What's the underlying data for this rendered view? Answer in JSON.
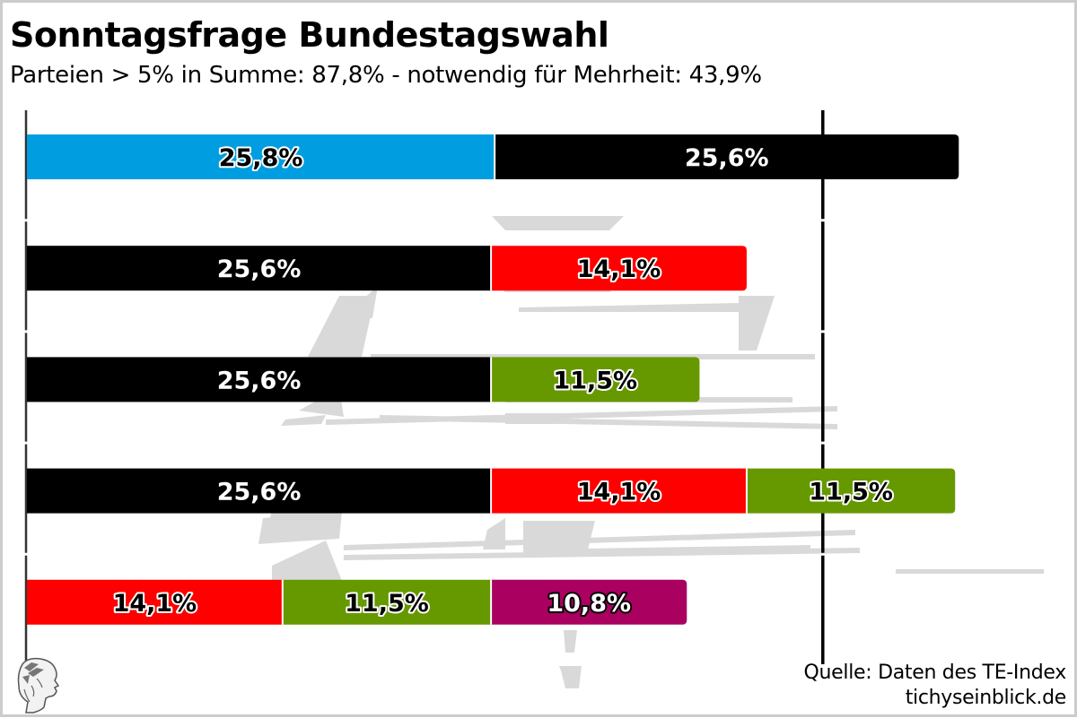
{
  "header": {
    "title": "Sonntagsfrage Bundestagswahl",
    "subtitle": "Parteien > 5% in Summe: 87,8% - notwendig für Mehrheit: 43,9%"
  },
  "footer": {
    "source_line": "Quelle: Daten des TE-Index",
    "site_line": "tichyseinblick.de",
    "logo_icon": "hermes-head-logo"
  },
  "colors": {
    "blue": "#009ee0",
    "black": "#000000",
    "red": "#ff0000",
    "green": "#669900",
    "purple": "#aa0060",
    "axis": "#333333",
    "majority_line": "#000000",
    "watermark": "#d9d9d9"
  },
  "chart_data": {
    "type": "bar",
    "orientation": "horizontal-stacked",
    "title": "Sonntagsfrage Bundestagswahl",
    "subtitle": "Parteien > 5% in Summe: 87,8% - notwendig für Mehrheit: 43,9%",
    "xlabel": "",
    "ylabel": "",
    "xlim": [
      0,
      55
    ],
    "grid": false,
    "majority_threshold": 43.9,
    "rows": [
      {
        "segments": [
          {
            "value": 25.8,
            "label": "25,8%",
            "color": "#009ee0",
            "label_style": "dark"
          },
          {
            "value": 25.6,
            "label": "25,6%",
            "color": "#000000",
            "label_style": "light"
          }
        ]
      },
      {
        "segments": [
          {
            "value": 25.6,
            "label": "25,6%",
            "color": "#000000",
            "label_style": "light"
          },
          {
            "value": 14.1,
            "label": "14,1%",
            "color": "#ff0000",
            "label_style": "dark"
          }
        ]
      },
      {
        "segments": [
          {
            "value": 25.6,
            "label": "25,6%",
            "color": "#000000",
            "label_style": "light"
          },
          {
            "value": 11.5,
            "label": "11,5%",
            "color": "#669900",
            "label_style": "dark"
          }
        ]
      },
      {
        "segments": [
          {
            "value": 25.6,
            "label": "25,6%",
            "color": "#000000",
            "label_style": "light"
          },
          {
            "value": 14.1,
            "label": "14,1%",
            "color": "#ff0000",
            "label_style": "dark"
          },
          {
            "value": 11.5,
            "label": "11,5%",
            "color": "#669900",
            "label_style": "dark"
          }
        ]
      },
      {
        "segments": [
          {
            "value": 14.1,
            "label": "14,1%",
            "color": "#ff0000",
            "label_style": "dark"
          },
          {
            "value": 11.5,
            "label": "11,5%",
            "color": "#669900",
            "label_style": "dark"
          },
          {
            "value": 10.8,
            "label": "10,8%",
            "color": "#aa0060",
            "label_style": "outlined-light"
          }
        ]
      }
    ]
  }
}
